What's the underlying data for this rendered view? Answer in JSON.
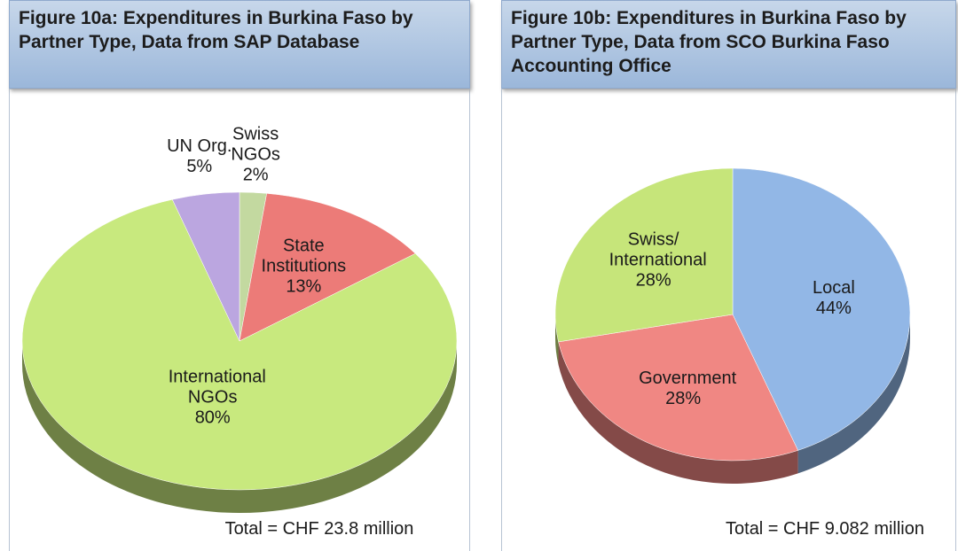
{
  "chart_data": [
    {
      "type": "pie",
      "title": "Figure 10a: Expenditures in Burkina Faso by Partner Type, Data from SAP Database",
      "categories": [
        "Swiss NGOs",
        "State Institutions",
        "International NGOs",
        "UN Org."
      ],
      "values": [
        2,
        13,
        80,
        5
      ],
      "value_labels": [
        "2%",
        "13%",
        "80%",
        "5%"
      ],
      "colors": [
        "#c3d9a0",
        "#ec7b78",
        "#c8e97e",
        "#bba6e0"
      ],
      "annotation": "Total = CHF 23.8 million"
    },
    {
      "type": "pie",
      "title": "Figure 10b: Expenditures in Burkina Faso by Partner Type, Data from SCO Burkina Faso Accounting Office",
      "categories": [
        "Local",
        "Government",
        "Swiss/ International"
      ],
      "values": [
        44,
        28,
        28
      ],
      "value_labels": [
        "44%",
        "28%",
        "28%"
      ],
      "colors": [
        "#92b7e6",
        "#f08783",
        "#c6e57a"
      ],
      "annotation": "Total = CHF 9.082 million"
    }
  ]
}
